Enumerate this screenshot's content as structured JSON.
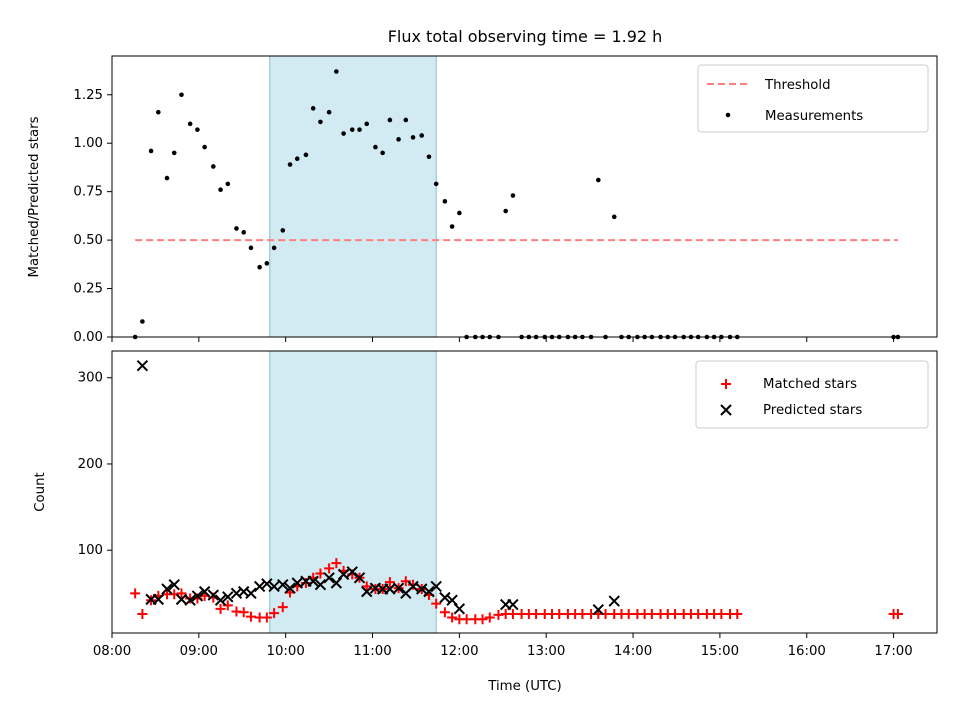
{
  "chart_data": {
    "title": "Flux total observing time = 1.92 h",
    "xlabel": "Time (UTC)",
    "x_ticks": [
      "08:00",
      "09:00",
      "10:00",
      "11:00",
      "12:00",
      "13:00",
      "14:00",
      "15:00",
      "16:00",
      "17:00"
    ],
    "xlim": [
      "08:00",
      "17:30"
    ],
    "shaded_interval": [
      "09:49",
      "11:44"
    ],
    "shade_color": "#add8e6",
    "panels": [
      {
        "type": "scatter",
        "ylabel": "Matched/Predicted stars",
        "ylim": [
          0,
          1.45
        ],
        "y_ticks": [
          0.0,
          0.25,
          0.5,
          0.75,
          1.0,
          1.25
        ],
        "y_tick_labels": [
          "0.00",
          "0.25",
          "0.50",
          "0.75",
          "1.00",
          "1.25"
        ],
        "legend": [
          "Threshold",
          "Measurements"
        ],
        "threshold": {
          "value": 0.5,
          "from": "08:16",
          "to": "17:03",
          "color": "#ff7f7f"
        },
        "measurements": {
          "color": "#000000",
          "points": [
            [
              "08:16",
              0.0
            ],
            [
              "08:21",
              0.08
            ],
            [
              "08:27",
              0.96
            ],
            [
              "08:32",
              1.16
            ],
            [
              "08:38",
              0.82
            ],
            [
              "08:43",
              0.95
            ],
            [
              "08:48",
              1.25
            ],
            [
              "08:54",
              1.1
            ],
            [
              "08:59",
              1.07
            ],
            [
              "09:04",
              0.98
            ],
            [
              "09:10",
              0.88
            ],
            [
              "09:15",
              0.76
            ],
            [
              "09:20",
              0.79
            ],
            [
              "09:26",
              0.56
            ],
            [
              "09:31",
              0.54
            ],
            [
              "09:36",
              0.46
            ],
            [
              "09:42",
              0.36
            ],
            [
              "09:47",
              0.38
            ],
            [
              "09:52",
              0.46
            ],
            [
              "09:58",
              0.55
            ],
            [
              "10:03",
              0.89
            ],
            [
              "10:08",
              0.92
            ],
            [
              "10:14",
              0.94
            ],
            [
              "10:19",
              1.18
            ],
            [
              "10:24",
              1.11
            ],
            [
              "10:30",
              1.16
            ],
            [
              "10:35",
              1.37
            ],
            [
              "10:40",
              1.05
            ],
            [
              "10:46",
              1.07
            ],
            [
              "10:51",
              1.07
            ],
            [
              "10:56",
              1.1
            ],
            [
              "11:02",
              0.98
            ],
            [
              "11:07",
              0.95
            ],
            [
              "11:12",
              1.12
            ],
            [
              "11:18",
              1.02
            ],
            [
              "11:23",
              1.12
            ],
            [
              "11:28",
              1.03
            ],
            [
              "11:34",
              1.04
            ],
            [
              "11:39",
              0.93
            ],
            [
              "11:44",
              0.79
            ],
            [
              "11:50",
              0.7
            ],
            [
              "11:55",
              0.57
            ],
            [
              "12:00",
              0.64
            ],
            [
              "12:05",
              0.0
            ],
            [
              "12:11",
              0.0
            ],
            [
              "12:16",
              0.0
            ],
            [
              "12:21",
              0.0
            ],
            [
              "12:27",
              0.0
            ],
            [
              "12:32",
              0.65
            ],
            [
              "12:37",
              0.73
            ],
            [
              "12:43",
              0.0
            ],
            [
              "12:48",
              0.0
            ],
            [
              "12:53",
              0.0
            ],
            [
              "12:59",
              0.0
            ],
            [
              "13:04",
              0.0
            ],
            [
              "13:09",
              0.0
            ],
            [
              "13:15",
              0.0
            ],
            [
              "13:20",
              0.0
            ],
            [
              "13:25",
              0.0
            ],
            [
              "13:31",
              0.0
            ],
            [
              "13:36",
              0.81
            ],
            [
              "13:41",
              0.0
            ],
            [
              "13:47",
              0.62
            ],
            [
              "13:52",
              0.0
            ],
            [
              "13:57",
              0.0
            ],
            [
              "14:03",
              0.0
            ],
            [
              "14:08",
              0.0
            ],
            [
              "14:13",
              0.0
            ],
            [
              "14:19",
              0.0
            ],
            [
              "14:24",
              0.0
            ],
            [
              "14:29",
              0.0
            ],
            [
              "14:35",
              0.0
            ],
            [
              "14:40",
              0.0
            ],
            [
              "14:45",
              0.0
            ],
            [
              "14:51",
              0.0
            ],
            [
              "14:56",
              0.0
            ],
            [
              "15:01",
              0.0
            ],
            [
              "15:07",
              0.0
            ],
            [
              "15:12",
              0.0
            ],
            [
              "17:00",
              0.0
            ],
            [
              "17:03",
              0.0
            ]
          ]
        }
      },
      {
        "type": "scatter",
        "ylabel": "Count",
        "ylim": [
          4,
          331
        ],
        "y_ticks": [
          100,
          200,
          300
        ],
        "y_tick_labels": [
          "100",
          "200",
          "300"
        ],
        "legend": [
          "Matched stars",
          "Predicted stars"
        ],
        "matched": {
          "color": "#ff0000",
          "points": [
            [
              "08:16",
              50
            ],
            [
              "08:21",
              26
            ],
            [
              "08:27",
              42
            ],
            [
              "08:32",
              47
            ],
            [
              "08:38",
              49
            ],
            [
              "08:43",
              49
            ],
            [
              "08:48",
              50
            ],
            [
              "08:54",
              44
            ],
            [
              "08:59",
              44
            ],
            [
              "09:04",
              47
            ],
            [
              "09:10",
              45
            ],
            [
              "09:15",
              32
            ],
            [
              "09:20",
              36
            ],
            [
              "09:26",
              29
            ],
            [
              "09:31",
              28
            ],
            [
              "09:36",
              23
            ],
            [
              "09:42",
              22
            ],
            [
              "09:47",
              22
            ],
            [
              "09:52",
              27
            ],
            [
              "09:58",
              34
            ],
            [
              "10:03",
              51
            ],
            [
              "10:08",
              58
            ],
            [
              "10:14",
              62
            ],
            [
              "10:19",
              68
            ],
            [
              "10:24",
              73
            ],
            [
              "10:30",
              79
            ],
            [
              "10:35",
              85
            ],
            [
              "10:40",
              76
            ],
            [
              "10:46",
              72
            ],
            [
              "10:51",
              68
            ],
            [
              "10:56",
              58
            ],
            [
              "11:02",
              55
            ],
            [
              "11:07",
              55
            ],
            [
              "11:12",
              63
            ],
            [
              "11:18",
              56
            ],
            [
              "11:23",
              64
            ],
            [
              "11:28",
              60
            ],
            [
              "11:34",
              55
            ],
            [
              "11:39",
              48
            ],
            [
              "11:44",
              38
            ],
            [
              "11:50",
              28
            ],
            [
              "11:55",
              22
            ],
            [
              "12:00",
              20
            ],
            [
              "12:05",
              20
            ],
            [
              "12:11",
              20
            ],
            [
              "12:16",
              20
            ],
            [
              "12:21",
              22
            ],
            [
              "12:27",
              25
            ],
            [
              "12:32",
              26
            ],
            [
              "12:37",
              26
            ],
            [
              "12:43",
              26
            ],
            [
              "12:48",
              26
            ],
            [
              "12:53",
              26
            ],
            [
              "12:59",
              26
            ],
            [
              "13:04",
              26
            ],
            [
              "13:09",
              26
            ],
            [
              "13:15",
              26
            ],
            [
              "13:20",
              26
            ],
            [
              "13:25",
              26
            ],
            [
              "13:31",
              26
            ],
            [
              "13:36",
              26
            ],
            [
              "13:41",
              26
            ],
            [
              "13:47",
              26
            ],
            [
              "13:52",
              26
            ],
            [
              "13:57",
              26
            ],
            [
              "14:03",
              26
            ],
            [
              "14:08",
              26
            ],
            [
              "14:13",
              26
            ],
            [
              "14:19",
              26
            ],
            [
              "14:24",
              26
            ],
            [
              "14:29",
              26
            ],
            [
              "14:35",
              26
            ],
            [
              "14:40",
              26
            ],
            [
              "14:45",
              26
            ],
            [
              "14:51",
              26
            ],
            [
              "14:56",
              26
            ],
            [
              "15:01",
              26
            ],
            [
              "15:07",
              26
            ],
            [
              "15:12",
              26
            ],
            [
              "17:00",
              26
            ],
            [
              "17:03",
              26
            ]
          ]
        },
        "predicted": {
          "color": "#000000",
          "points": [
            [
              "08:21",
              314
            ],
            [
              "08:27",
              43
            ],
            [
              "08:32",
              43
            ],
            [
              "08:38",
              55
            ],
            [
              "08:43",
              60
            ],
            [
              "08:48",
              43
            ],
            [
              "08:54",
              42
            ],
            [
              "08:59",
              47
            ],
            [
              "09:04",
              52
            ],
            [
              "09:10",
              48
            ],
            [
              "09:15",
              42
            ],
            [
              "09:20",
              46
            ],
            [
              "09:26",
              50
            ],
            [
              "09:31",
              52
            ],
            [
              "09:36",
              50
            ],
            [
              "09:42",
              58
            ],
            [
              "09:47",
              61
            ],
            [
              "09:52",
              58
            ],
            [
              "09:58",
              60
            ],
            [
              "10:03",
              56
            ],
            [
              "10:08",
              62
            ],
            [
              "10:14",
              64
            ],
            [
              "10:19",
              64
            ],
            [
              "10:24",
              60
            ],
            [
              "10:30",
              68
            ],
            [
              "10:35",
              62
            ],
            [
              "10:40",
              72
            ],
            [
              "10:46",
              75
            ],
            [
              "10:51",
              68
            ],
            [
              "10:56",
              52
            ],
            [
              "11:02",
              56
            ],
            [
              "11:07",
              55
            ],
            [
              "11:12",
              55
            ],
            [
              "11:18",
              56
            ],
            [
              "11:23",
              50
            ],
            [
              "11:28",
              58
            ],
            [
              "11:34",
              55
            ],
            [
              "11:39",
              52
            ],
            [
              "11:44",
              58
            ],
            [
              "11:50",
              45
            ],
            [
              "11:55",
              42
            ],
            [
              "12:00",
              32
            ],
            [
              "12:32",
              37
            ],
            [
              "12:37",
              37
            ],
            [
              "13:36",
              31
            ],
            [
              "13:47",
              41
            ]
          ]
        }
      }
    ]
  }
}
